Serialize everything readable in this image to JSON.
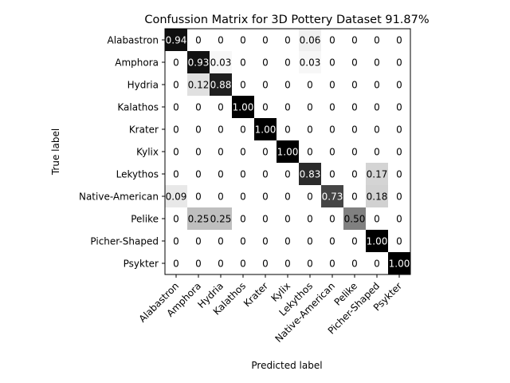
{
  "chart_data": {
    "type": "heatmap",
    "title": "Confussion Matrix for 3D Pottery Dataset 91.87%",
    "xlabel": "Predicted label",
    "ylabel": "True label",
    "categories": [
      "Alabastron",
      "Amphora",
      "Hydria",
      "Kalathos",
      "Krater",
      "Kylix",
      "Lekythos",
      "Native-American",
      "Pelike",
      "Picher-Shaped",
      "Psykter"
    ],
    "values": [
      [
        0.94,
        0,
        0,
        0,
        0,
        0,
        0.06,
        0,
        0,
        0,
        0
      ],
      [
        0,
        0.93,
        0.03,
        0,
        0,
        0,
        0.03,
        0,
        0,
        0,
        0
      ],
      [
        0,
        0.12,
        0.88,
        0,
        0,
        0,
        0,
        0,
        0,
        0,
        0
      ],
      [
        0,
        0,
        0,
        1.0,
        0,
        0,
        0,
        0,
        0,
        0,
        0
      ],
      [
        0,
        0,
        0,
        0,
        1.0,
        0,
        0,
        0,
        0,
        0,
        0
      ],
      [
        0,
        0,
        0,
        0,
        0,
        1.0,
        0,
        0,
        0,
        0,
        0
      ],
      [
        0,
        0,
        0,
        0,
        0,
        0,
        0.83,
        0,
        0,
        0.17,
        0
      ],
      [
        0.09,
        0,
        0,
        0,
        0,
        0,
        0,
        0.73,
        0,
        0.18,
        0
      ],
      [
        0,
        0.25,
        0.25,
        0,
        0,
        0,
        0,
        0,
        0.5,
        0,
        0
      ],
      [
        0,
        0,
        0,
        0,
        0,
        0,
        0,
        0,
        0,
        1.0,
        0
      ],
      [
        0,
        0,
        0,
        0,
        0,
        0,
        0,
        0,
        0,
        0,
        1.0
      ]
    ],
    "cell_labels": [
      [
        "0.94",
        "0",
        "0",
        "0",
        "0",
        "0",
        "0.06",
        "0",
        "0",
        "0",
        "0"
      ],
      [
        "0",
        "0.93",
        "0.03",
        "0",
        "0",
        "0",
        "0.03",
        "0",
        "0",
        "0",
        "0"
      ],
      [
        "0",
        "0.12",
        "0.88",
        "0",
        "0",
        "0",
        "0",
        "0",
        "0",
        "0",
        "0"
      ],
      [
        "0",
        "0",
        "0",
        "1.00",
        "0",
        "0",
        "0",
        "0",
        "0",
        "0",
        "0"
      ],
      [
        "0",
        "0",
        "0",
        "0",
        "1.00",
        "0",
        "0",
        "0",
        "0",
        "0",
        "0"
      ],
      [
        "0",
        "0",
        "0",
        "0",
        "0",
        "1.00",
        "0",
        "0",
        "0",
        "0",
        "0"
      ],
      [
        "0",
        "0",
        "0",
        "0",
        "0",
        "0",
        "0.83",
        "0",
        "0",
        "0.17",
        "0"
      ],
      [
        "0.09",
        "0",
        "0",
        "0",
        "0",
        "0",
        "0",
        "0.73",
        "0",
        "0.18",
        "0"
      ],
      [
        "0",
        "0.25",
        "0.25",
        "0",
        "0",
        "0",
        "0",
        "0",
        "0.50",
        "0",
        "0"
      ],
      [
        "0",
        "0",
        "0",
        "0",
        "0",
        "0",
        "0",
        "0",
        "0",
        "1.00",
        "0"
      ],
      [
        "0",
        "0",
        "0",
        "0",
        "0",
        "0",
        "0",
        "0",
        "0",
        "0",
        "1.00"
      ]
    ],
    "colormap": "Greys",
    "vmin": 0,
    "vmax": 1
  }
}
